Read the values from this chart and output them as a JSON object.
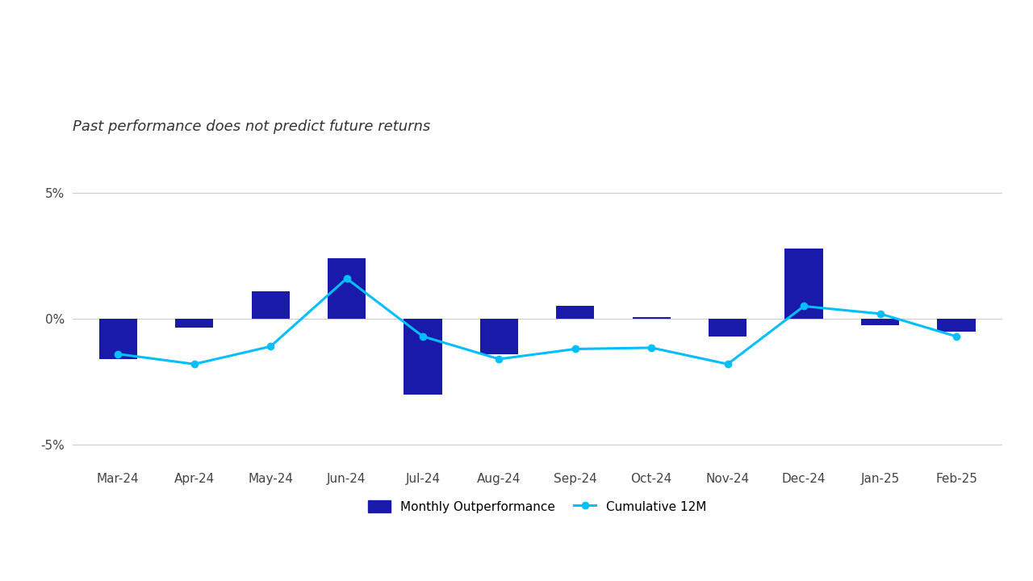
{
  "categories": [
    "Mar-24",
    "Apr-24",
    "May-24",
    "Jun-24",
    "Jul-24",
    "Aug-24",
    "Sep-24",
    "Oct-24",
    "Nov-24",
    "Dec-24",
    "Jan-25",
    "Feb-25"
  ],
  "monthly_outperformance": [
    -1.6,
    -0.35,
    1.1,
    2.4,
    -3.0,
    -1.4,
    0.5,
    0.05,
    -0.7,
    2.8,
    -0.25,
    -0.5
  ],
  "cumulative_12m": [
    -1.4,
    -1.8,
    -1.1,
    1.6,
    -0.7,
    -1.6,
    -1.2,
    -1.15,
    -1.8,
    0.5,
    0.2,
    -0.7
  ],
  "bar_color": "#1a1aaa",
  "line_color": "#00bfff",
  "line_marker": "o",
  "line_marker_size": 6,
  "line_width": 2.2,
  "subtitle": "Past performance does not predict future returns",
  "subtitle_fontsize": 13,
  "subtitle_style": "italic",
  "yticks": [
    -5,
    0,
    5
  ],
  "yticklabels": [
    "-5%",
    "0%",
    "5%"
  ],
  "ylim": [
    -5.8,
    6.2
  ],
  "grid_color": "#cccccc",
  "background_color": "#ffffff",
  "legend_monthly_label": "Monthly Outperformance",
  "legend_cumulative_label": "Cumulative 12M",
  "bar_width": 0.5,
  "tick_fontsize": 11,
  "legend_fontsize": 11
}
